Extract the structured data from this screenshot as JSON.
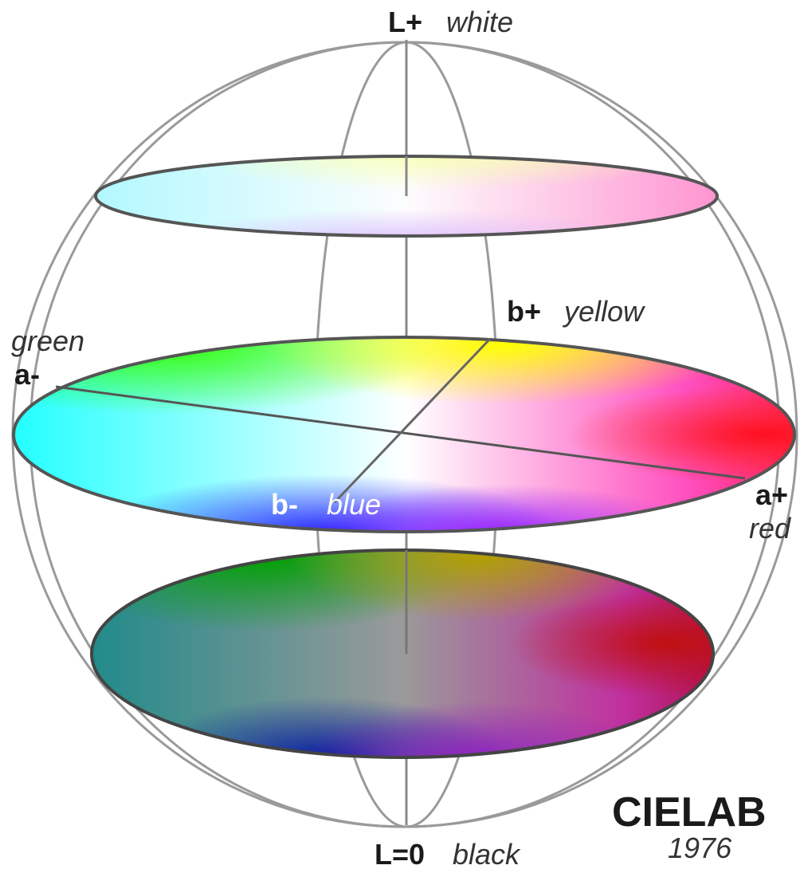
{
  "axes": {
    "l_plus": {
      "axis": "L+",
      "name": "white"
    },
    "l_zero": {
      "axis": "L=0",
      "name": "black"
    },
    "b_plus": {
      "axis": "b+",
      "name": "yellow"
    },
    "b_minus": {
      "axis": "b-",
      "name": "blue"
    },
    "a_minus": {
      "axis": "a-",
      "name": "green"
    },
    "a_plus": {
      "axis": "a+",
      "name": "red"
    }
  },
  "title": "CIELAB",
  "year": "1976"
}
